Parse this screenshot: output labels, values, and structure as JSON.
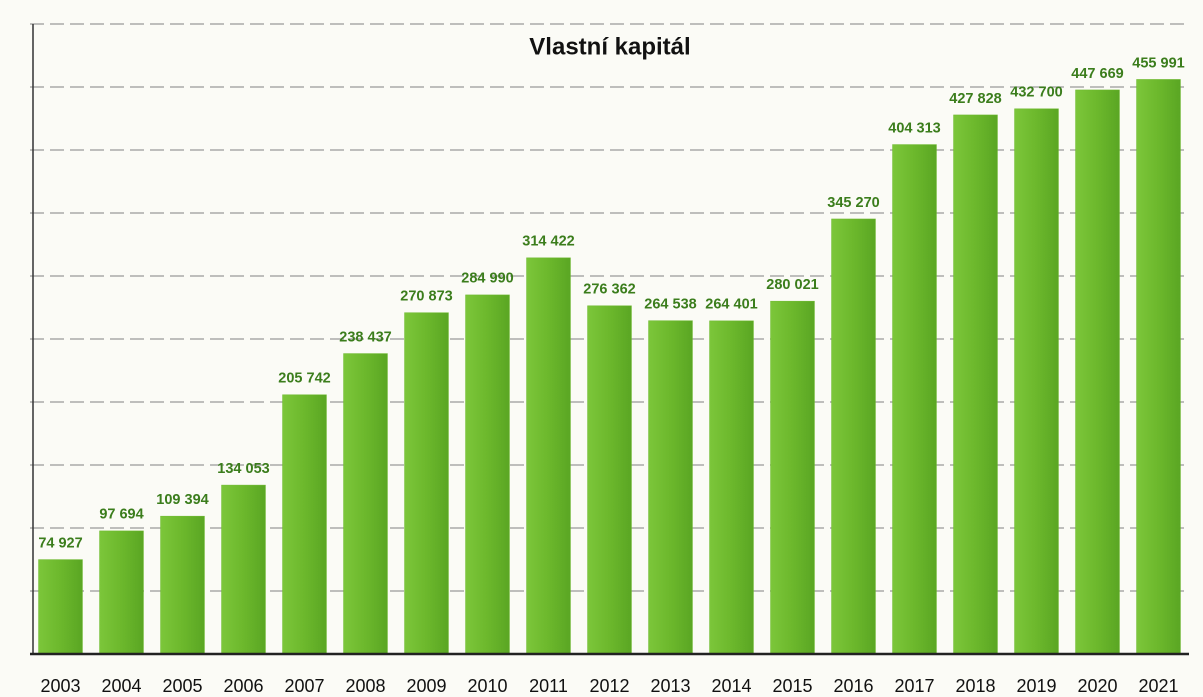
{
  "chart_data": {
    "type": "bar",
    "title": "Vlastní kapitál",
    "categories": [
      "2003",
      "2004",
      "2005",
      "2006",
      "2007",
      "2008",
      "2009",
      "2010",
      "2011",
      "2012",
      "2013",
      "2014",
      "2015",
      "2016",
      "2017",
      "2018",
      "2019",
      "2020",
      "2021"
    ],
    "values": [
      74927,
      97694,
      109394,
      134053,
      205742,
      238437,
      270873,
      284990,
      314422,
      276362,
      264538,
      264401,
      280021,
      345270,
      404313,
      427828,
      432700,
      447669,
      455991
    ],
    "value_labels": [
      "74 927",
      "97 694",
      "109 394",
      "134 053",
      "205 742",
      "238 437",
      "270 873",
      "284 990",
      "314 422",
      "276 362",
      "264 538",
      "264 401",
      "280 021",
      "345 270",
      "404 313",
      "427 828",
      "432 700",
      "447 669",
      "455 991"
    ],
    "color": "#6cb82c",
    "ylim": [
      0,
      500000
    ],
    "yticks": [
      0,
      50000,
      100000,
      150000,
      200000,
      250000,
      300000,
      350000,
      400000,
      450000,
      500000
    ],
    "grid": true
  }
}
